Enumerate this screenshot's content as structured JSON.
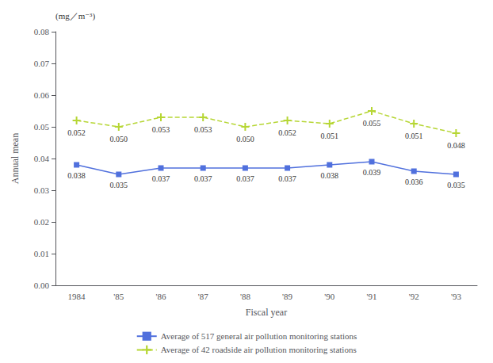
{
  "chart_data": {
    "type": "line",
    "categories": [
      "1984",
      "'85",
      "'86",
      "'87",
      "'88",
      "'89",
      "'90",
      "'91",
      "'92",
      "'93"
    ],
    "series": [
      {
        "name": "Average of 517 general air pollution monitoring stations",
        "values": [
          0.038,
          0.035,
          0.037,
          0.037,
          0.037,
          0.037,
          0.038,
          0.039,
          0.036,
          0.035
        ],
        "value_labels": [
          "0.038",
          "0.035",
          "0.037",
          "0.037",
          "0.037",
          "0.037",
          "0.038",
          "0.039",
          "0.036",
          "0.035"
        ],
        "marker": "square",
        "line_style": "solid"
      },
      {
        "name": "Average of 42 roadside air pollution monitoring stations",
        "values": [
          0.052,
          0.05,
          0.053,
          0.053,
          0.05,
          0.052,
          0.051,
          0.055,
          0.051,
          0.048
        ],
        "value_labels": [
          "0.052",
          "0.050",
          "0.053",
          "0.053",
          "0.050",
          "0.052",
          "0.051",
          "0.055",
          "0.051",
          "0.048"
        ],
        "marker": "plus",
        "line_style": "dashed"
      }
    ],
    "xlabel": "Fiscal year",
    "ylabel": "Annual mean",
    "annotations": [
      "(mg／m⁻³)"
    ],
    "ylim": [
      0.0,
      0.08
    ],
    "yticks": [
      {
        "value": 0.0,
        "label": "0.00"
      },
      {
        "value": 0.01,
        "label": "0.01"
      },
      {
        "value": 0.02,
        "label": "0.02"
      },
      {
        "value": 0.03,
        "label": "0.03"
      },
      {
        "value": 0.04,
        "label": "0.04"
      },
      {
        "value": 0.05,
        "label": "0.05"
      },
      {
        "value": 0.06,
        "label": "0.06"
      },
      {
        "value": 0.07,
        "label": "0.07"
      },
      {
        "value": 0.08,
        "label": "0.08"
      }
    ],
    "grid": false,
    "legend": "bottom",
    "data_labels": true
  }
}
